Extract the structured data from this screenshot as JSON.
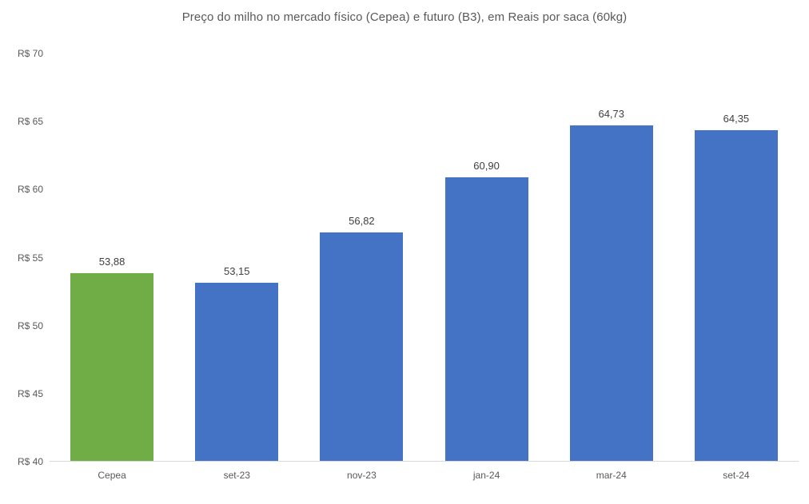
{
  "chart_data": {
    "type": "bar",
    "title": "Preço do milho no mercado físico (Cepea) e futuro (B3), em Reais por saca (60kg)",
    "categories": [
      "Cepea",
      "set-23",
      "nov-23",
      "jan-24",
      "mar-24",
      "set-24"
    ],
    "values": [
      53.88,
      53.15,
      56.82,
      60.9,
      64.73,
      64.35
    ],
    "value_labels": [
      "53,88",
      "53,15",
      "56,82",
      "60,90",
      "64,73",
      "64,35"
    ],
    "bar_colors": [
      "#70AD47",
      "#4472C4",
      "#4472C4",
      "#4472C4",
      "#4472C4",
      "#4472C4"
    ],
    "xlabel": "",
    "ylabel": "",
    "ylim": [
      40,
      70
    ],
    "ytick_step": 5,
    "ytick_labels": [
      "R$ 40",
      "R$ 45",
      "R$ 50",
      "R$ 55",
      "R$ 60",
      "R$ 65",
      "R$ 70"
    ],
    "grid": false,
    "legend_position": "none",
    "series_semantics": {
      "green_bar": "Cepea (mercado físico)",
      "blue_bars": "Futuro B3"
    },
    "colors": {
      "cepea_green": "#70AD47",
      "futuro_blue": "#4472C4",
      "axis_line": "#D9D9D9",
      "title_text": "#595959",
      "tick_text": "#595959",
      "data_label_text": "#404040",
      "background": "#FFFFFF"
    }
  }
}
